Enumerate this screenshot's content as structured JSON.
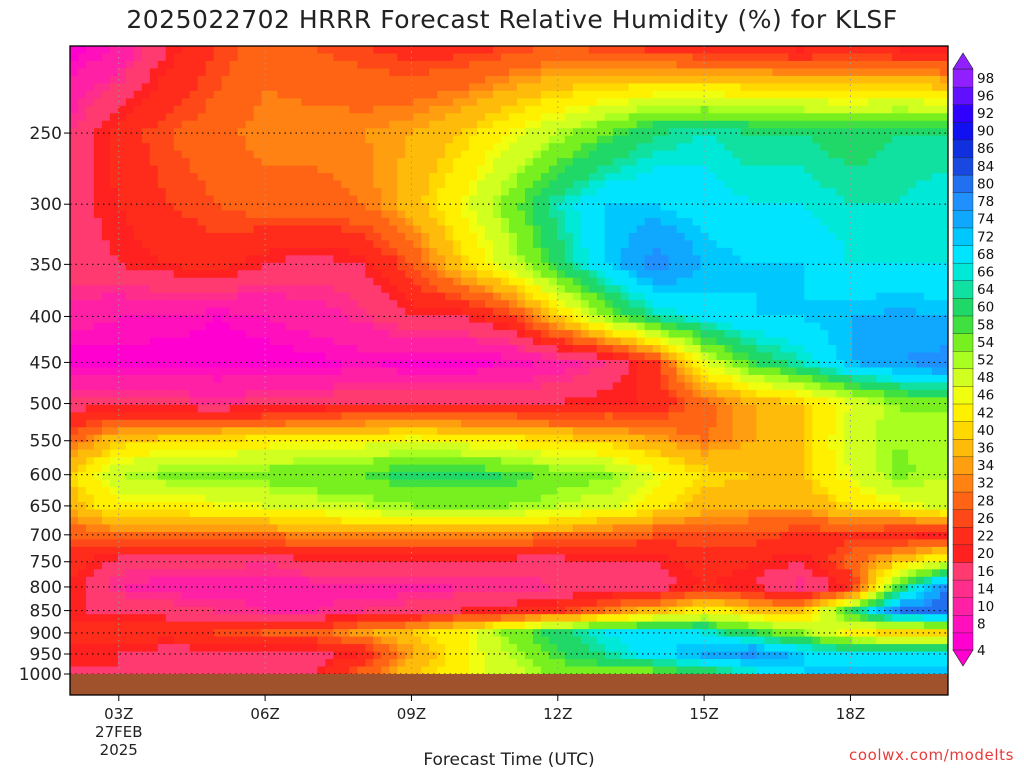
{
  "chart_data": {
    "type": "heatmap",
    "title": "2025022702 HRRR Forecast Relative Humidity (%) for KLSF",
    "xlabel": "Forecast Time (UTC)",
    "ylabel": "",
    "credit": "coolwx.com/modelts",
    "x": [
      2,
      3,
      4,
      5,
      6,
      7,
      8,
      9,
      10,
      11,
      12,
      13,
      14,
      15,
      16,
      17,
      18,
      19,
      20
    ],
    "xlim": [
      2,
      20
    ],
    "x_ticks": [
      {
        "value": 3,
        "label": "03Z",
        "date": "27FEB",
        "year": "2025"
      },
      {
        "value": 6,
        "label": "06Z"
      },
      {
        "value": 9,
        "label": "09Z"
      },
      {
        "value": 12,
        "label": "12Z"
      },
      {
        "value": 15,
        "label": "15Z"
      },
      {
        "value": 18,
        "label": "18Z"
      }
    ],
    "y_levels": [
      1000,
      950,
      900,
      850,
      800,
      750,
      700,
      650,
      600,
      550,
      500,
      450,
      400,
      350,
      300,
      250,
      200
    ],
    "y_tick_labels": [
      "1000",
      "950",
      "900",
      "850",
      "800",
      "750",
      "700",
      "650",
      "600",
      "550",
      "500",
      "450",
      "400",
      "350",
      "300",
      "250"
    ],
    "ylim": [
      1000,
      200
    ],
    "y_scale": "log-pressure",
    "grid": true,
    "colorbar_levels": [
      4,
      8,
      10,
      14,
      16,
      20,
      22,
      26,
      28,
      32,
      34,
      36,
      40,
      42,
      46,
      48,
      52,
      54,
      58,
      60,
      64,
      66,
      68,
      72,
      74,
      78,
      80,
      84,
      86,
      90,
      92,
      96,
      98
    ],
    "colorbar_colors": [
      "#ff00d0",
      "#ff10bc",
      "#ff20a6",
      "#ff2d8c",
      "#ff3a70",
      "#ff2020",
      "#ff2c1c",
      "#ff4818",
      "#ff6414",
      "#ff8212",
      "#ff9f10",
      "#ffbb0a",
      "#ffd800",
      "#fff000",
      "#f0ff10",
      "#d0ff20",
      "#a8ff20",
      "#78f020",
      "#40e040",
      "#20d868",
      "#10e0a0",
      "#00e8d8",
      "#00e4ff",
      "#00c8ff",
      "#10a8ff",
      "#2090ff",
      "#2070f0",
      "#1848e0",
      "#1030e0",
      "#1010f0",
      "#3000ff",
      "#6010ff",
      "#9020ff"
    ],
    "rh_grid": [
      [
        20,
        20,
        20,
        20,
        20,
        20,
        30,
        40,
        45,
        50,
        55,
        55,
        55,
        60,
        65,
        72,
        74,
        74,
        74
      ],
      [
        20,
        20,
        18,
        18,
        18,
        18,
        22,
        35,
        45,
        52,
        60,
        65,
        72,
        75,
        80,
        72,
        70,
        70,
        70
      ],
      [
        25,
        24,
        24,
        26,
        28,
        30,
        35,
        40,
        45,
        55,
        62,
        68,
        70,
        68,
        60,
        55,
        45,
        40,
        40
      ],
      [
        20,
        20,
        18,
        16,
        14,
        14,
        16,
        18,
        20,
        22,
        25,
        32,
        38,
        45,
        40,
        38,
        60,
        80,
        84
      ],
      [
        22,
        14,
        12,
        12,
        12,
        12,
        12,
        12,
        14,
        14,
        16,
        16,
        18,
        22,
        20,
        14,
        22,
        60,
        80
      ],
      [
        24,
        18,
        18,
        18,
        16,
        20,
        20,
        20,
        20,
        18,
        18,
        20,
        20,
        24,
        22,
        20,
        30,
        40,
        50
      ],
      [
        28,
        32,
        32,
        32,
        32,
        33,
        34,
        34,
        33,
        33,
        32,
        30,
        28,
        28,
        28,
        25,
        25,
        22,
        20
      ],
      [
        38,
        45,
        45,
        46,
        48,
        50,
        52,
        54,
        54,
        54,
        52,
        50,
        44,
        38,
        36,
        36,
        42,
        46,
        50
      ],
      [
        40,
        52,
        55,
        55,
        56,
        58,
        58,
        62,
        62,
        60,
        56,
        55,
        48,
        42,
        40,
        40,
        48,
        55,
        52
      ],
      [
        30,
        40,
        42,
        43,
        44,
        45,
        46,
        48,
        46,
        44,
        42,
        40,
        36,
        32,
        36,
        40,
        50,
        54,
        52
      ],
      [
        18,
        18,
        17,
        16,
        17,
        18,
        20,
        20,
        20,
        20,
        20,
        22,
        22,
        30,
        36,
        40,
        48,
        54,
        55
      ],
      [
        6,
        7,
        6,
        6,
        6,
        7,
        8,
        7,
        7,
        8,
        12,
        16,
        25,
        48,
        60,
        66,
        74,
        78,
        80
      ],
      [
        12,
        10,
        10,
        8,
        10,
        12,
        15,
        20,
        20,
        25,
        40,
        55,
        65,
        70,
        72,
        72,
        74,
        75,
        74
      ],
      [
        18,
        20,
        22,
        24,
        20,
        18,
        20,
        28,
        40,
        50,
        62,
        72,
        80,
        74,
        72,
        72,
        68,
        68,
        68
      ],
      [
        18,
        22,
        26,
        28,
        30,
        30,
        32,
        38,
        46,
        56,
        66,
        72,
        72,
        70,
        68,
        68,
        66,
        66,
        68
      ],
      [
        16,
        24,
        28,
        30,
        34,
        34,
        34,
        36,
        40,
        46,
        52,
        58,
        64,
        66,
        64,
        64,
        62,
        64,
        64
      ],
      [
        6,
        10,
        20,
        26,
        30,
        28,
        26,
        24,
        24,
        26,
        28,
        26,
        24,
        22,
        22,
        20,
        22,
        20,
        18
      ]
    ]
  }
}
